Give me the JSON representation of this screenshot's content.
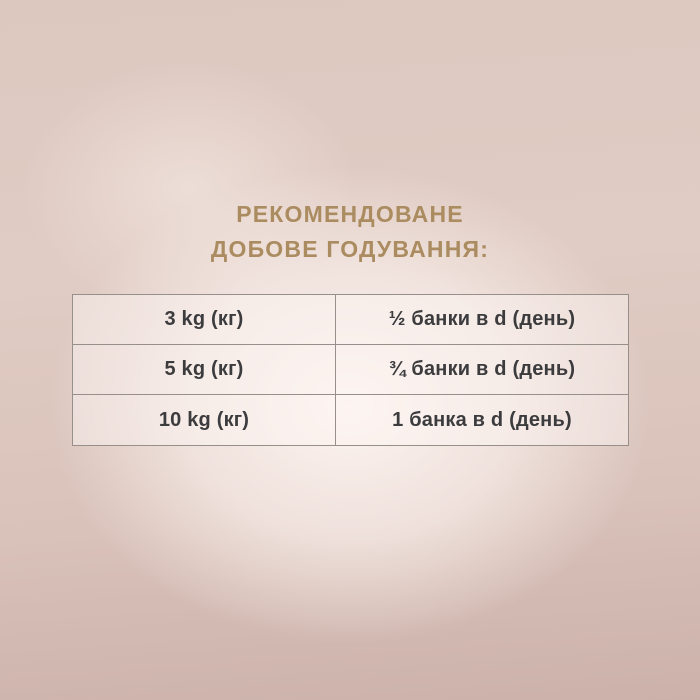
{
  "title": {
    "line1": "РЕКОМЕНДОВАНЕ",
    "line2": "ДОБОВЕ ГОДУВАННЯ:"
  },
  "table": {
    "rows": [
      {
        "weight": "3 kg (кг)",
        "amount": "½ банки в d (день)"
      },
      {
        "weight": "5 kg (кг)",
        "amount": "¾ банки в d (день)"
      },
      {
        "weight": "10 kg (кг)",
        "amount": "1 банка в d (день)"
      }
    ]
  },
  "colors": {
    "title": "#ab8c60",
    "table-border": "#97908a",
    "table-text": "#3c3c3e",
    "bg-top": "#ddc8c0",
    "bg-bottom": "#cbb1a9",
    "bg-center": "#fdf4f0"
  }
}
